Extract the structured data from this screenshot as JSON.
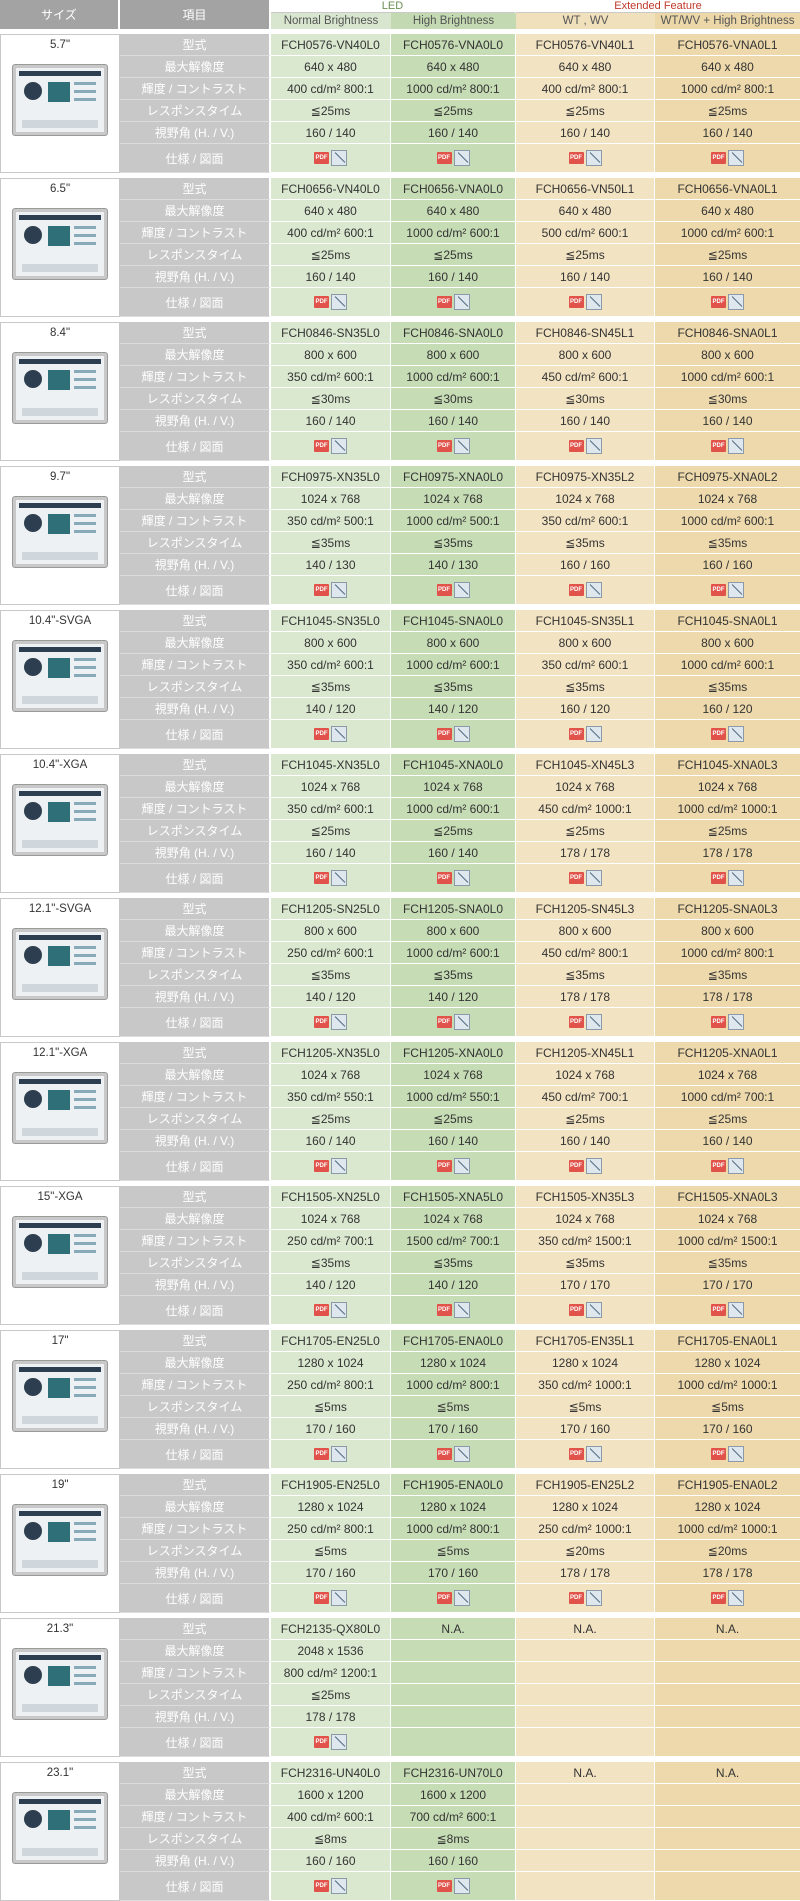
{
  "header": {
    "size": "サイズ",
    "item": "項目",
    "group_led": "LED",
    "group_ext": "Extended Feature",
    "sub": [
      "Normal Brightness",
      "High Brightness",
      "WT , WV",
      "WT/WV + High Brightness"
    ]
  },
  "row_labels": [
    "型式",
    "最大解像度",
    "輝度 / コントラスト",
    "レスポンスタイム",
    "視野角 (H. / V.)",
    "仕様 / 図面"
  ],
  "icons": {
    "pdf": "pdf-icon",
    "drawing": "drawing-icon",
    "pdf_text": "PDF"
  },
  "sizes": [
    {
      "label": "5.7\"",
      "cols": [
        [
          "FCH0576-VN40L0",
          "640 x 480",
          "400 cd/m²  800:1",
          "≦25ms",
          "160 / 140"
        ],
        [
          "FCH0576-VNA0L0",
          "640 x 480",
          "1000 cd/m²  800:1",
          "≦25ms",
          "160 / 140"
        ],
        [
          "FCH0576-VN40L1",
          "640 x 480",
          "400 cd/m²  800:1",
          "≦25ms",
          "160 / 140"
        ],
        [
          "FCH0576-VNA0L1",
          "640 x 480",
          "1000 cd/m²  800:1",
          "≦25ms",
          "160 / 140"
        ]
      ]
    },
    {
      "label": "6.5\"",
      "cols": [
        [
          "FCH0656-VN40L0",
          "640 x 480",
          "400 cd/m²  600:1",
          "≦25ms",
          "160 / 140"
        ],
        [
          "FCH0656-VNA0L0",
          "640 x 480",
          "1000 cd/m²  600:1",
          "≦25ms",
          "160 / 140"
        ],
        [
          "FCH0656-VN50L1",
          "640 x 480",
          "500 cd/m²  600:1",
          "≦25ms",
          "160 / 140"
        ],
        [
          "FCH0656-VNA0L1",
          "640 x 480",
          "1000 cd/m²  600:1",
          "≦25ms",
          "160 / 140"
        ]
      ]
    },
    {
      "label": "8.4\"",
      "cols": [
        [
          "FCH0846-SN35L0",
          "800 x 600",
          "350 cd/m²  600:1",
          "≦30ms",
          "160 / 140"
        ],
        [
          "FCH0846-SNA0L0",
          "800 x 600",
          "1000 cd/m²  600:1",
          "≦30ms",
          "160 / 140"
        ],
        [
          "FCH0846-SN45L1",
          "800 x 600",
          "450 cd/m²  600:1",
          "≦30ms",
          "160 / 140"
        ],
        [
          "FCH0846-SNA0L1",
          "800 x 600",
          "1000 cd/m²  600:1",
          "≦30ms",
          "160 / 140"
        ]
      ]
    },
    {
      "label": "9.7\"",
      "cols": [
        [
          "FCH0975-XN35L0",
          "1024 x 768",
          "350 cd/m²  500:1",
          "≦35ms",
          "140 / 130"
        ],
        [
          "FCH0975-XNA0L0",
          "1024 x 768",
          "1000 cd/m²  500:1",
          "≦35ms",
          "140 / 130"
        ],
        [
          "FCH0975-XN35L2",
          "1024 x 768",
          "350 cd/m²  600:1",
          "≦35ms",
          "160 / 160"
        ],
        [
          "FCH0975-XNA0L2",
          "1024 x 768",
          "1000 cd/m²  600:1",
          "≦35ms",
          "160 / 160"
        ]
      ]
    },
    {
      "label": "10.4\"-SVGA",
      "cols": [
        [
          "FCH1045-SN35L0",
          "800 x 600",
          "350 cd/m²  600:1",
          "≦35ms",
          "140 / 120"
        ],
        [
          "FCH1045-SNA0L0",
          "800 x 600",
          "1000 cd/m²  600:1",
          "≦35ms",
          "140 / 120"
        ],
        [
          "FCH1045-SN35L1",
          "800 x 600",
          "350 cd/m²  600:1",
          "≦35ms",
          "160 / 120"
        ],
        [
          "FCH1045-SNA0L1",
          "800 x 600",
          "1000 cd/m²  600:1",
          "≦35ms",
          "160 / 120"
        ]
      ]
    },
    {
      "label": "10.4\"-XGA",
      "cols": [
        [
          "FCH1045-XN35L0",
          "1024 x 768",
          "350 cd/m²  600:1",
          "≦25ms",
          "160 / 140"
        ],
        [
          "FCH1045-XNA0L0",
          "1024 x 768",
          "1000 cd/m²  600:1",
          "≦25ms",
          "160 / 140"
        ],
        [
          "FCH1045-XN45L3",
          "1024 x 768",
          "450 cd/m²  1000:1",
          "≦25ms",
          "178 / 178"
        ],
        [
          "FCH1045-XNA0L3",
          "1024 x 768",
          "1000 cd/m²  1000:1",
          "≦25ms",
          "178 / 178"
        ]
      ]
    },
    {
      "label": "12.1\"-SVGA",
      "cols": [
        [
          "FCH1205-SN25L0",
          "800 x 600",
          "250 cd/m²  600:1",
          "≦35ms",
          "140 / 120"
        ],
        [
          "FCH1205-SNA0L0",
          "800 x 600",
          "1000 cd/m²  600:1",
          "≦35ms",
          "140 / 120"
        ],
        [
          "FCH1205-SN45L3",
          "800 x 600",
          "450 cd/m²  800:1",
          "≦35ms",
          "178 / 178"
        ],
        [
          "FCH1205-SNA0L3",
          "800 x 600",
          "1000 cd/m²  800:1",
          "≦35ms",
          "178 / 178"
        ]
      ]
    },
    {
      "label": "12.1\"-XGA",
      "cols": [
        [
          "FCH1205-XN35L0",
          "1024 x 768",
          "350 cd/m²  550:1",
          "≦25ms",
          "160 / 140"
        ],
        [
          "FCH1205-XNA0L0",
          "1024 x 768",
          "1000 cd/m²  550:1",
          "≦25ms",
          "160 / 140"
        ],
        [
          "FCH1205-XN45L1",
          "1024 x 768",
          "450 cd/m²  700:1",
          "≦25ms",
          "160 / 140"
        ],
        [
          "FCH1205-XNA0L1",
          "1024 x 768",
          "1000 cd/m²  700:1",
          "≦25ms",
          "160 / 140"
        ]
      ]
    },
    {
      "label": "15\"-XGA",
      "cols": [
        [
          "FCH1505-XN25L0",
          "1024 x 768",
          "250 cd/m²  700:1",
          "≦35ms",
          "140 / 120"
        ],
        [
          "FCH1505-XNA5L0",
          "1024 x 768",
          "1500 cd/m²  700:1",
          "≦35ms",
          "140 / 120"
        ],
        [
          "FCH1505-XN35L3",
          "1024 x 768",
          "350 cd/m²  1500:1",
          "≦35ms",
          "170 / 170"
        ],
        [
          "FCH1505-XNA0L3",
          "1024 x 768",
          "1000 cd/m²  1500:1",
          "≦35ms",
          "170 / 170"
        ]
      ]
    },
    {
      "label": "17\"",
      "cols": [
        [
          "FCH1705-EN25L0",
          "1280 x 1024",
          "250 cd/m²  800:1",
          "≦5ms",
          "170 / 160"
        ],
        [
          "FCH1705-ENA0L0",
          "1280 x 1024",
          "1000 cd/m²  800:1",
          "≦5ms",
          "170 / 160"
        ],
        [
          "FCH1705-EN35L1",
          "1280 x 1024",
          "350 cd/m²  1000:1",
          "≦5ms",
          "170 / 160"
        ],
        [
          "FCH1705-ENA0L1",
          "1280 x 1024",
          "1000 cd/m²  1000:1",
          "≦5ms",
          "170 / 160"
        ]
      ]
    },
    {
      "label": "19\"",
      "cols": [
        [
          "FCH1905-EN25L0",
          "1280 x 1024",
          "250 cd/m²  800:1",
          "≦5ms",
          "170 / 160"
        ],
        [
          "FCH1905-ENA0L0",
          "1280 x 1024",
          "1000 cd/m²  800:1",
          "≦5ms",
          "170 / 160"
        ],
        [
          "FCH1905-EN25L2",
          "1280 x 1024",
          "250 cd/m²  1000:1",
          "≦20ms",
          "178 / 178"
        ],
        [
          "FCH1905-ENA0L2",
          "1280 x 1024",
          "1000 cd/m²  1000:1",
          "≦20ms",
          "178 / 178"
        ]
      ]
    },
    {
      "label": "21.3\"",
      "cols": [
        [
          "FCH2135-QX80L0",
          "2048 x 1536",
          "800 cd/m²  1200:1",
          "≦25ms",
          "178 / 178"
        ],
        [
          "N.A.",
          "",
          "",
          "",
          ""
        ],
        [
          "N.A.",
          "",
          "",
          "",
          ""
        ],
        [
          "N.A.",
          "",
          "",
          "",
          ""
        ]
      ]
    },
    {
      "label": "23.1\"",
      "cols": [
        [
          "FCH2316-UN40L0",
          "1600 x 1200",
          "400 cd/m²  600:1",
          "≦8ms",
          "160 / 160"
        ],
        [
          "FCH2316-UN70L0",
          "1600 x 1200",
          "700 cd/m²  600:1",
          "≦8ms",
          "160 / 160"
        ],
        [
          "N.A.",
          "",
          "",
          "",
          ""
        ],
        [
          "N.A.",
          "",
          "",
          "",
          ""
        ]
      ]
    }
  ]
}
